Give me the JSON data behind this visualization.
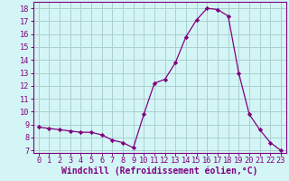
{
  "hours": [
    0,
    1,
    2,
    3,
    4,
    5,
    6,
    7,
    8,
    9,
    10,
    11,
    12,
    13,
    14,
    15,
    16,
    17,
    18,
    19,
    20,
    21,
    22,
    23
  ],
  "values": [
    8.8,
    8.7,
    8.6,
    8.5,
    8.4,
    8.4,
    8.2,
    7.8,
    7.6,
    7.2,
    9.8,
    12.2,
    12.5,
    13.8,
    15.8,
    17.1,
    18.0,
    17.9,
    17.4,
    13.0,
    9.8,
    8.6,
    7.6,
    7.0
  ],
  "line_color": "#800080",
  "marker": "D",
  "marker_size": 2.2,
  "bg_color": "#d4f5f5",
  "grid_color": "#aacfcf",
  "xlabel": "Windchill (Refroidissement éolien,°C)",
  "xlabel_fontsize": 7,
  "ylabel_ticks": [
    7,
    8,
    9,
    10,
    11,
    12,
    13,
    14,
    15,
    16,
    17,
    18
  ],
  "xlim": [
    -0.5,
    23.5
  ],
  "ylim": [
    6.8,
    18.5
  ],
  "tick_fontsize": 6.2
}
